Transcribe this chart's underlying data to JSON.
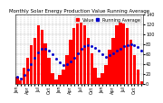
{
  "title": "Monthly Solar Energy Production Value Running Average",
  "bar_color": "#ff0000",
  "avg_color": "#0000cc",
  "background_color": "#ffffff",
  "grid_color": "#aaaaaa",
  "months": [
    "Jan",
    "Feb",
    "Mar",
    "Apr",
    "May",
    "Jun",
    "Jul",
    "Aug",
    "Sep",
    "Oct",
    "Nov",
    "Dec",
    "Jan",
    "Feb",
    "Mar",
    "Apr",
    "May",
    "Jun",
    "Jul",
    "Aug",
    "Sep",
    "Oct",
    "Nov",
    "Dec",
    "Jan",
    "Feb",
    "Mar",
    "Apr",
    "May",
    "Jun",
    "Jul",
    "Aug",
    "Sep",
    "Oct",
    "Nov",
    "Dec"
  ],
  "values": [
    15,
    7,
    32,
    52,
    78,
    92,
    118,
    108,
    82,
    52,
    22,
    8,
    18,
    28,
    58,
    88,
    112,
    122,
    128,
    118,
    92,
    62,
    32,
    12,
    22,
    38,
    68,
    92,
    118,
    128,
    122,
    112,
    88,
    58,
    28,
    6
  ],
  "running_avg": [
    15,
    11,
    18,
    28,
    40,
    52,
    64,
    70,
    70,
    67,
    60,
    51,
    43,
    37,
    39,
    45,
    53,
    62,
    70,
    75,
    77,
    76,
    73,
    67,
    60,
    55,
    57,
    61,
    66,
    71,
    75,
    77,
    79,
    77,
    74,
    67
  ],
  "ylim": [
    0,
    140
  ],
  "yticks": [
    0,
    20,
    40,
    60,
    80,
    100,
    120,
    140
  ],
  "ytick_labels": [
    "0",
    "20",
    "40",
    "60",
    "80",
    "100",
    "120",
    "140"
  ],
  "title_fontsize": 4.0,
  "tick_fontsize": 3.5,
  "legend_fontsize": 3.5,
  "legend_label_value": "Value",
  "legend_label_avg": "Running Average"
}
